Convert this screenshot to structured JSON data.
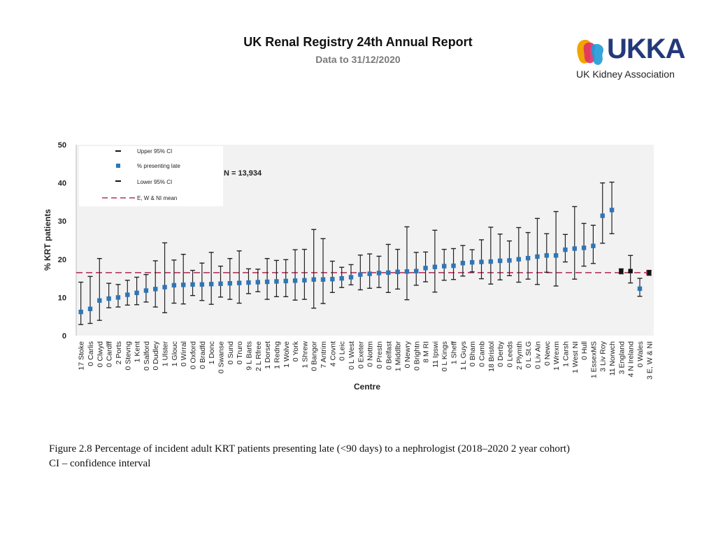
{
  "header": {
    "title": "UK Renal Registry 24th Annual Report",
    "subtitle": "Data to 31/12/2020"
  },
  "logo": {
    "word": "UKKA",
    "name": "UK Kidney Association",
    "colors": [
      "#f0a500",
      "#e0306a",
      "#1f9ad6",
      "#23397a"
    ]
  },
  "caption": {
    "line1": "Figure 2.8 Percentage of incident adult KRT patients presenting late (<90 days) to a nephrologist (2018–2020 2 year cohort)",
    "line2": "CI – confidence interval"
  },
  "chart_data": {
    "type": "scatter",
    "title": "",
    "annotation": "N = 13,934",
    "xlabel": "Centre",
    "ylabel": "% KRT patients",
    "ylim": [
      0,
      50
    ],
    "yticks": [
      0,
      10,
      20,
      30,
      40,
      50
    ],
    "grid": false,
    "legend_position": "top-left",
    "legend": [
      "Upper 95% CI",
      "% presenting late",
      "Lower 95% CI",
      "E, W & NI mean"
    ],
    "mean": 16.5,
    "colors": {
      "point": "#2e75b6",
      "summary": "#111111",
      "mean": "#b2325a",
      "plot_bg": "#f2f2f2"
    },
    "categories": [
      "17 Stoke",
      "0 Carlis",
      "0 Clwyd",
      "0 Cardff",
      "2 Ports",
      "0 Stevng",
      "1 Kent",
      "0 Salford",
      "0 Dudley",
      "1 Ulster",
      "1 Glouc",
      "0 Wirral",
      "0 Oxford",
      "0 Bradfd",
      "1 Donc",
      "0 Swanse",
      "0 Sund",
      "0 Truro",
      "9 L Barts",
      "2 L Rfree",
      "1 Dorset",
      "1 Redng",
      "1 Wolve",
      "0 York",
      "1 Shrew",
      "0 Bangor",
      "7 Antrim",
      "4 Covnt",
      "0 Leic",
      "0 L West",
      "0 Exeter",
      "0 Nottm",
      "0 Prestn",
      "0 Belfast",
      "1 Middlbr",
      "0 Newry",
      "0 Brightn",
      "8 M RI",
      "11 Ipswi",
      "0 L Kings",
      "1 Sheff",
      "1 L Guys",
      "0 Bham",
      "0 Camb",
      "18 Bristol",
      "0 Derby",
      "0 Leeds",
      "2 Plymth",
      "0 L St.G",
      "0 Liv Ain",
      "0 Newc",
      "1 Wrexm",
      "1 Carsh",
      "1 West NI",
      "0 Hull",
      "1 EssexMS",
      "3 Liv Roy",
      "11 Norwch",
      "3 England",
      "4 N Ireland",
      "0 Wales",
      "3 E, W & NI"
    ],
    "series": [
      {
        "name": "% presenting late",
        "values": [
          6.2,
          7.0,
          9.2,
          9.7,
          10.0,
          10.7,
          11.2,
          11.8,
          12.2,
          12.7,
          13.2,
          13.3,
          13.4,
          13.4,
          13.5,
          13.6,
          13.7,
          13.8,
          13.9,
          14.0,
          14.1,
          14.2,
          14.3,
          14.4,
          14.5,
          14.7,
          14.7,
          14.8,
          15.0,
          15.3,
          16.0,
          16.2,
          16.4,
          16.5,
          16.7,
          16.8,
          16.9,
          17.7,
          18.0,
          18.2,
          18.3,
          19.0,
          19.2,
          19.3,
          19.4,
          19.6,
          19.7,
          20.0,
          20.3,
          20.7,
          21.0,
          21.0,
          22.5,
          22.8,
          23.0,
          23.5,
          31.4,
          32.9,
          16.9,
          16.9,
          12.3,
          16.5
        ]
      },
      {
        "name": "Upper 95% CI",
        "values": [
          14.0,
          15.5,
          20.2,
          13.7,
          13.4,
          14.5,
          15.3,
          16.0,
          19.6,
          24.3,
          19.8,
          21.3,
          17.1,
          19.0,
          21.8,
          18.2,
          20.2,
          22.2,
          17.5,
          17.4,
          20.2,
          19.7,
          19.9,
          22.5,
          22.6,
          27.8,
          25.4,
          19.5,
          17.9,
          18.6,
          21.1,
          21.4,
          20.8,
          23.9,
          22.6,
          28.5,
          21.8,
          21.9,
          27.6,
          22.6,
          22.8,
          23.6,
          22.5,
          25.1,
          28.4,
          26.6,
          24.8,
          28.3,
          27.0,
          30.7,
          26.7,
          32.5,
          26.5,
          33.8,
          29.4,
          28.9,
          40.0,
          40.2,
          17.5,
          21.0,
          15.0,
          17.1
        ]
      },
      {
        "name": "Lower 95% CI",
        "values": [
          2.9,
          3.2,
          4.0,
          7.3,
          7.5,
          8.0,
          8.1,
          8.8,
          7.5,
          6.0,
          8.5,
          8.3,
          10.5,
          9.2,
          8.2,
          10.1,
          9.5,
          8.5,
          11.0,
          11.5,
          9.5,
          10.2,
          10.2,
          9.3,
          9.5,
          7.2,
          8.4,
          11.3,
          12.6,
          13.3,
          12.0,
          12.4,
          12.6,
          11.3,
          12.2,
          9.4,
          13.2,
          14.1,
          11.4,
          14.5,
          14.7,
          15.6,
          16.7,
          14.9,
          13.5,
          14.6,
          15.7,
          14.0,
          14.8,
          13.4,
          16.6,
          13.0,
          19.3,
          14.8,
          18.2,
          18.9,
          24.2,
          26.7,
          16.2,
          13.8,
          10.3,
          15.8
        ]
      }
    ]
  }
}
